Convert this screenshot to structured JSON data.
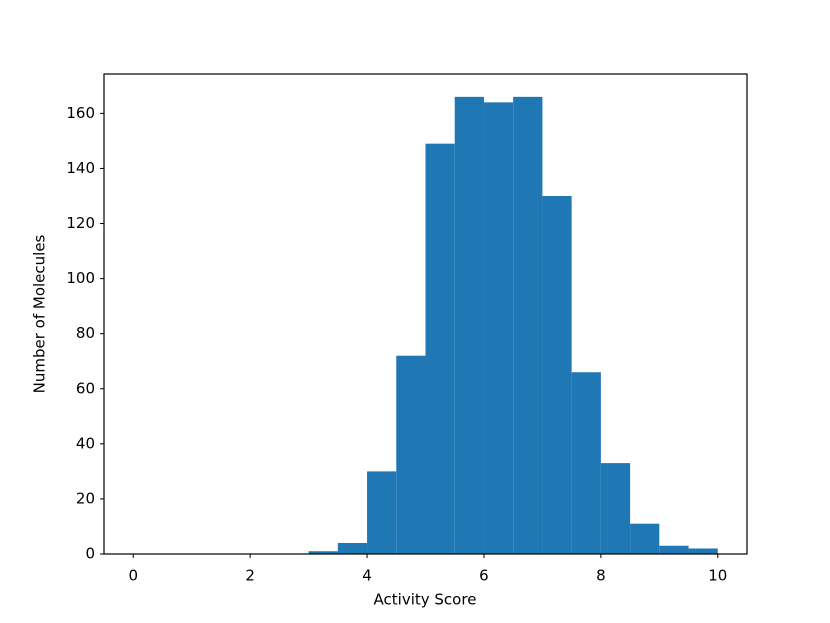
{
  "chart_data": {
    "type": "histogram",
    "xlabel": "Activity Score",
    "ylabel": "Number of Molecules",
    "bins": [
      0,
      0.5,
      1,
      1.5,
      2,
      2.5,
      3,
      3.5,
      4,
      4.5,
      5,
      5.5,
      6,
      6.5,
      7,
      7.5,
      8,
      8.5,
      9,
      9.5,
      10
    ],
    "values": [
      0,
      0,
      0,
      0,
      0,
      0,
      1,
      4,
      30,
      72,
      149,
      166,
      164,
      166,
      130,
      66,
      33,
      11,
      3,
      2
    ],
    "color": "#1f77b4",
    "xlim": [
      -0.5,
      10.5
    ],
    "xticks": [
      0,
      2,
      4,
      6,
      8,
      10
    ],
    "ylim": [
      0,
      174.3
    ],
    "yticks": [
      0,
      20,
      40,
      60,
      80,
      100,
      120,
      140,
      160
    ],
    "grid": false
  }
}
